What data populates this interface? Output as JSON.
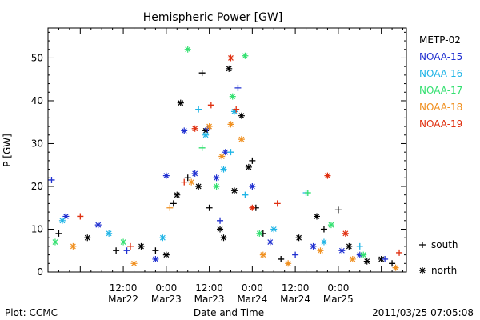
{
  "chart_data": {
    "type": "scatter",
    "title": "Hemispheric Power [GW]",
    "ylabel": "P [GW]",
    "xlabel": "Date and Time",
    "ylim": [
      0,
      57
    ],
    "xlim": [
      "2011-03-21T15:00",
      "2011-03-25T19:00"
    ],
    "yticks": [
      0,
      10,
      20,
      30,
      40,
      50
    ],
    "xticks": [
      {
        "at": "2011-03-22T12:00",
        "line1": "12:00",
        "line2": "Mar22"
      },
      {
        "at": "2011-03-23T00:00",
        "line1": "0:00",
        "line2": "Mar23"
      },
      {
        "at": "2011-03-23T12:00",
        "line1": "12:00",
        "line2": "Mar23"
      },
      {
        "at": "2011-03-24T00:00",
        "line1": "0:00",
        "line2": "Mar24"
      },
      {
        "at": "2011-03-24T12:00",
        "line1": "12:00",
        "line2": "Mar24"
      },
      {
        "at": "2011-03-25T00:00",
        "line1": "0:00",
        "line2": "Mar25"
      }
    ],
    "legend_placement": "right",
    "marker_legend": [
      {
        "symbol": "+",
        "label": "south"
      },
      {
        "symbol": "*",
        "label": "north"
      }
    ],
    "series": [
      {
        "name": "METP-02",
        "color": "#000000",
        "points": [
          {
            "x": "2011-03-21T18:00",
            "y": 9,
            "m": "+"
          },
          {
            "x": "2011-03-22T02:00",
            "y": 8,
            "m": "*"
          },
          {
            "x": "2011-03-22T10:00",
            "y": 5,
            "m": "+"
          },
          {
            "x": "2011-03-22T17:00",
            "y": 6,
            "m": "*"
          },
          {
            "x": "2011-03-22T21:00",
            "y": 5,
            "m": "+"
          },
          {
            "x": "2011-03-23T00:00",
            "y": 4,
            "m": "*"
          },
          {
            "x": "2011-03-23T02:00",
            "y": 16,
            "m": "+"
          },
          {
            "x": "2011-03-23T03:00",
            "y": 18,
            "m": "*"
          },
          {
            "x": "2011-03-23T04:00",
            "y": 39.5,
            "m": "*"
          },
          {
            "x": "2011-03-23T06:00",
            "y": 22,
            "m": "+"
          },
          {
            "x": "2011-03-23T09:00",
            "y": 20,
            "m": "*"
          },
          {
            "x": "2011-03-23T10:00",
            "y": 46.5,
            "m": "+"
          },
          {
            "x": "2011-03-23T11:00",
            "y": 33,
            "m": "*"
          },
          {
            "x": "2011-03-23T12:00",
            "y": 15,
            "m": "+"
          },
          {
            "x": "2011-03-23T15:00",
            "y": 10,
            "m": "*"
          },
          {
            "x": "2011-03-23T16:00",
            "y": 8,
            "m": "*"
          },
          {
            "x": "2011-03-23T17:30",
            "y": 47.5,
            "m": "*"
          },
          {
            "x": "2011-03-23T19:00",
            "y": 19,
            "m": "*"
          },
          {
            "x": "2011-03-23T21:00",
            "y": 36.5,
            "m": "*"
          },
          {
            "x": "2011-03-23T23:00",
            "y": 24.5,
            "m": "*"
          },
          {
            "x": "2011-03-24T00:00",
            "y": 26,
            "m": "+"
          },
          {
            "x": "2011-03-24T01:00",
            "y": 15,
            "m": "+"
          },
          {
            "x": "2011-03-24T03:00",
            "y": 9,
            "m": "+"
          },
          {
            "x": "2011-03-24T08:00",
            "y": 3,
            "m": "+"
          },
          {
            "x": "2011-03-24T13:00",
            "y": 8,
            "m": "*"
          },
          {
            "x": "2011-03-24T18:00",
            "y": 13,
            "m": "*"
          },
          {
            "x": "2011-03-24T20:00",
            "y": 10,
            "m": "+"
          },
          {
            "x": "2011-03-25T00:00",
            "y": 14.5,
            "m": "+"
          },
          {
            "x": "2011-03-25T03:00",
            "y": 6,
            "m": "*"
          },
          {
            "x": "2011-03-25T08:00",
            "y": 2.5,
            "m": "*"
          },
          {
            "x": "2011-03-25T12:00",
            "y": 3,
            "m": "*"
          },
          {
            "x": "2011-03-25T15:00",
            "y": 2,
            "m": "+"
          }
        ]
      },
      {
        "name": "NOAA-15",
        "color": "#2030d0",
        "points": [
          {
            "x": "2011-03-21T16:00",
            "y": 21.5,
            "m": "+"
          },
          {
            "x": "2011-03-21T20:00",
            "y": 13,
            "m": "*"
          },
          {
            "x": "2011-03-22T05:00",
            "y": 11,
            "m": "*"
          },
          {
            "x": "2011-03-22T13:00",
            "y": 5,
            "m": "+"
          },
          {
            "x": "2011-03-22T21:00",
            "y": 3,
            "m": "*"
          },
          {
            "x": "2011-03-23T00:00",
            "y": 22.5,
            "m": "*"
          },
          {
            "x": "2011-03-23T05:00",
            "y": 33,
            "m": "*"
          },
          {
            "x": "2011-03-23T08:00",
            "y": 23,
            "m": "*"
          },
          {
            "x": "2011-03-23T11:30",
            "y": 33.5,
            "m": "+"
          },
          {
            "x": "2011-03-23T14:00",
            "y": 22,
            "m": "*"
          },
          {
            "x": "2011-03-23T15:00",
            "y": 12,
            "m": "+"
          },
          {
            "x": "2011-03-23T16:30",
            "y": 28,
            "m": "*"
          },
          {
            "x": "2011-03-23T20:00",
            "y": 43,
            "m": "+"
          },
          {
            "x": "2011-03-24T00:00",
            "y": 20,
            "m": "*"
          },
          {
            "x": "2011-03-24T05:00",
            "y": 7,
            "m": "*"
          },
          {
            "x": "2011-03-24T12:00",
            "y": 4,
            "m": "+"
          },
          {
            "x": "2011-03-24T17:00",
            "y": 6,
            "m": "*"
          },
          {
            "x": "2011-03-25T01:00",
            "y": 5,
            "m": "*"
          },
          {
            "x": "2011-03-25T06:00",
            "y": 4,
            "m": "*"
          },
          {
            "x": "2011-03-25T13:00",
            "y": 3,
            "m": "+"
          }
        ]
      },
      {
        "name": "NOAA-16",
        "color": "#1fb4e6",
        "points": [
          {
            "x": "2011-03-21T19:00",
            "y": 12,
            "m": "*"
          },
          {
            "x": "2011-03-22T08:00",
            "y": 9,
            "m": "*"
          },
          {
            "x": "2011-03-22T23:00",
            "y": 8,
            "m": "*"
          },
          {
            "x": "2011-03-23T09:00",
            "y": 38,
            "m": "+"
          },
          {
            "x": "2011-03-23T11:00",
            "y": 32,
            "m": "*"
          },
          {
            "x": "2011-03-23T16:00",
            "y": 24,
            "m": "*"
          },
          {
            "x": "2011-03-23T18:00",
            "y": 28,
            "m": "+"
          },
          {
            "x": "2011-03-23T19:00",
            "y": 37.5,
            "m": "*"
          },
          {
            "x": "2011-03-23T22:00",
            "y": 18,
            "m": "+"
          },
          {
            "x": "2011-03-24T06:00",
            "y": 10,
            "m": "*"
          },
          {
            "x": "2011-03-24T15:00",
            "y": 18.5,
            "m": "+"
          },
          {
            "x": "2011-03-24T20:00",
            "y": 7,
            "m": "*"
          },
          {
            "x": "2011-03-25T06:00",
            "y": 6,
            "m": "+"
          }
        ]
      },
      {
        "name": "NOAA-17",
        "color": "#33e070",
        "points": [
          {
            "x": "2011-03-21T17:00",
            "y": 7,
            "m": "*"
          },
          {
            "x": "2011-03-22T12:00",
            "y": 7,
            "m": "*"
          },
          {
            "x": "2011-03-23T06:00",
            "y": 52,
            "m": "*"
          },
          {
            "x": "2011-03-23T10:00",
            "y": 29,
            "m": "+"
          },
          {
            "x": "2011-03-23T14:00",
            "y": 20,
            "m": "*"
          },
          {
            "x": "2011-03-23T18:30",
            "y": 41,
            "m": "*"
          },
          {
            "x": "2011-03-23T22:00",
            "y": 50.5,
            "m": "*"
          },
          {
            "x": "2011-03-24T02:00",
            "y": 9,
            "m": "*"
          },
          {
            "x": "2011-03-24T15:30",
            "y": 18.5,
            "m": "+"
          },
          {
            "x": "2011-03-24T22:00",
            "y": 11,
            "m": "*"
          },
          {
            "x": "2011-03-25T07:00",
            "y": 4,
            "m": "*"
          }
        ]
      },
      {
        "name": "NOAA-18",
        "color": "#f09020",
        "points": [
          {
            "x": "2011-03-21T22:00",
            "y": 6,
            "m": "*"
          },
          {
            "x": "2011-03-22T15:00",
            "y": 2,
            "m": "*"
          },
          {
            "x": "2011-03-23T01:00",
            "y": 15,
            "m": "+"
          },
          {
            "x": "2011-03-23T07:00",
            "y": 21,
            "m": "*"
          },
          {
            "x": "2011-03-23T12:00",
            "y": 34,
            "m": "*"
          },
          {
            "x": "2011-03-23T15:30",
            "y": 27,
            "m": "*"
          },
          {
            "x": "2011-03-23T18:00",
            "y": 34.5,
            "m": "*"
          },
          {
            "x": "2011-03-23T21:00",
            "y": 31,
            "m": "*"
          },
          {
            "x": "2011-03-24T03:00",
            "y": 4,
            "m": "*"
          },
          {
            "x": "2011-03-24T10:00",
            "y": 2,
            "m": "*"
          },
          {
            "x": "2011-03-24T19:00",
            "y": 5,
            "m": "*"
          },
          {
            "x": "2011-03-25T04:00",
            "y": 3,
            "m": "*"
          },
          {
            "x": "2011-03-25T16:00",
            "y": 1,
            "m": "*"
          }
        ]
      },
      {
        "name": "NOAA-19",
        "color": "#e03010",
        "points": [
          {
            "x": "2011-03-22T00:00",
            "y": 13,
            "m": "+"
          },
          {
            "x": "2011-03-22T14:00",
            "y": 6,
            "m": "+"
          },
          {
            "x": "2011-03-23T05:00",
            "y": 21,
            "m": "+"
          },
          {
            "x": "2011-03-23T08:00",
            "y": 33.5,
            "m": "*"
          },
          {
            "x": "2011-03-23T12:30",
            "y": 39,
            "m": "+"
          },
          {
            "x": "2011-03-23T18:00",
            "y": 50,
            "m": "*"
          },
          {
            "x": "2011-03-23T19:30",
            "y": 38,
            "m": "+"
          },
          {
            "x": "2011-03-24T00:00",
            "y": 15,
            "m": "*"
          },
          {
            "x": "2011-03-24T07:00",
            "y": 16,
            "m": "+"
          },
          {
            "x": "2011-03-24T21:00",
            "y": 22.5,
            "m": "*"
          },
          {
            "x": "2011-03-25T02:00",
            "y": 9,
            "m": "*"
          },
          {
            "x": "2011-03-25T17:00",
            "y": 4.5,
            "m": "+"
          }
        ]
      }
    ]
  },
  "footer": {
    "left": "Plot: CCMC",
    "right": "2011/03/25 07:05:08"
  }
}
